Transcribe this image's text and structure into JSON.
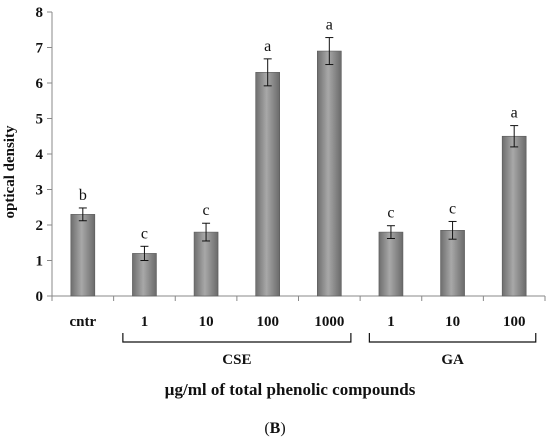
{
  "chart_data": {
    "type": "bar",
    "title": "",
    "ylabel": "optical density",
    "xlabel": "µg/ml of total phenolic compounds",
    "ylim": [
      0,
      8
    ],
    "yticks": [
      0,
      1,
      2,
      3,
      4,
      5,
      6,
      7,
      8
    ],
    "grid": false,
    "categories": [
      "cntr",
      "1",
      "10",
      "100",
      "1000",
      "1",
      "10",
      "100"
    ],
    "values": [
      2.3,
      1.2,
      1.8,
      6.3,
      6.9,
      1.8,
      1.85,
      4.5
    ],
    "errors": [
      0.18,
      0.2,
      0.25,
      0.38,
      0.38,
      0.18,
      0.25,
      0.3
    ],
    "significance": [
      "b",
      "c",
      "c",
      "a",
      "a",
      "c",
      "c",
      "a"
    ],
    "groups": [
      {
        "label": "CSE",
        "members": [
          1,
          2,
          3,
          4
        ]
      },
      {
        "label": "GA",
        "members": [
          5,
          6,
          7
        ]
      }
    ],
    "bar_color": "#8a8a8a"
  },
  "panel": {
    "open": "(",
    "letter": "B",
    "close": ")"
  }
}
